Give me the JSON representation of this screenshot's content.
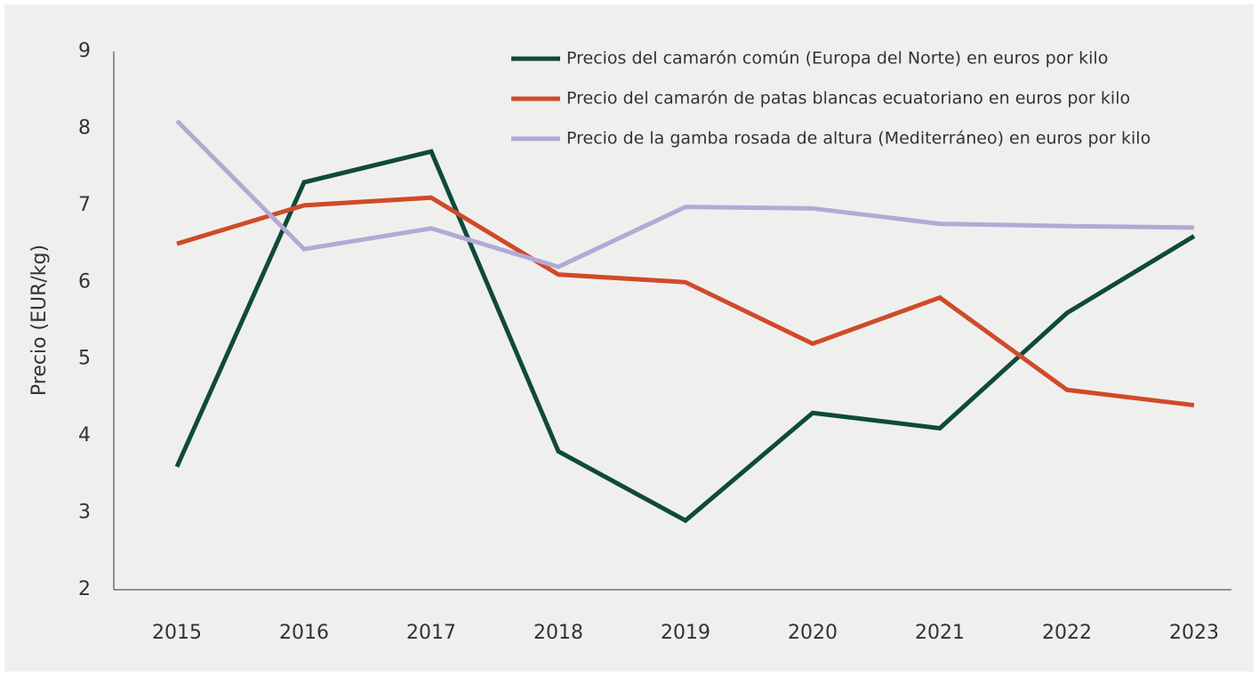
{
  "chart_data": {
    "type": "line",
    "y_label": "Precio (EUR/kg)",
    "categories": [
      "2015",
      "2016",
      "2017",
      "2018",
      "2019",
      "2020",
      "2021",
      "2022",
      "2023"
    ],
    "series": [
      {
        "name": "Precios del camarón común (Europa del Norte) en euros por kilo",
        "color": "#0f4a3a",
        "values": [
          3.6,
          7.3,
          7.7,
          3.8,
          2.9,
          4.3,
          4.1,
          5.6,
          6.6
        ]
      },
      {
        "name": "Precio del camarón de patas blancas ecuatoriano en euros por kilo",
        "color": "#d04a2a",
        "values": [
          6.5,
          7.0,
          7.1,
          6.1,
          6.0,
          5.2,
          5.8,
          4.6,
          4.4
        ]
      },
      {
        "name": "Precio de la gamba rosada de altura (Mediterráneo) en euros por kilo",
        "color": "#b3a9d6",
        "values": [
          8.1,
          6.43,
          6.7,
          6.2,
          6.98,
          6.96,
          6.76,
          6.73,
          6.71
        ]
      }
    ],
    "ylim": [
      2,
      9
    ],
    "yticks": [
      2,
      3,
      4,
      5,
      6,
      7,
      8,
      9
    ],
    "grid": false,
    "legend": "top-right"
  }
}
